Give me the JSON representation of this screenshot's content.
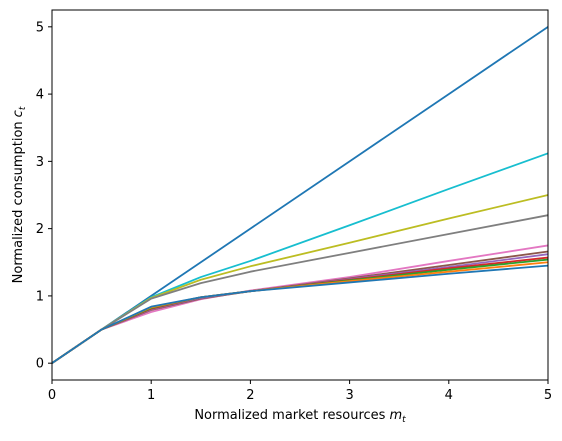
{
  "chart_data": {
    "type": "line",
    "xlabel": "Normalized market resources",
    "xlabel_symbol": "m",
    "xlabel_subscript": "t",
    "ylabel": "Normalized consumption",
    "ylabel_symbol": "c",
    "ylabel_subscript": "t",
    "xlim": [
      0,
      5
    ],
    "ylim": [
      -0.25,
      5.25
    ],
    "xticks": [
      "0",
      "1",
      "2",
      "3",
      "4",
      "5"
    ],
    "yticks": [
      "0",
      "1",
      "2",
      "3",
      "4",
      "5"
    ],
    "grid": false,
    "legend": "none",
    "series": [
      {
        "color": "#1f77b4",
        "x": [
          0,
          1,
          2,
          3,
          4,
          5
        ],
        "y": [
          0,
          1.0,
          2.0,
          3.0,
          4.0,
          5.0
        ]
      },
      {
        "color": "#17becf",
        "x": [
          0,
          0.5,
          1,
          1.5,
          2,
          3,
          4,
          5
        ],
        "y": [
          0,
          0.5,
          0.98,
          1.28,
          1.52,
          2.05,
          2.59,
          3.12
        ]
      },
      {
        "color": "#bcbd22",
        "x": [
          0,
          0.5,
          1,
          1.5,
          2,
          3,
          4,
          5
        ],
        "y": [
          0,
          0.5,
          0.97,
          1.24,
          1.44,
          1.79,
          2.15,
          2.5
        ]
      },
      {
        "color": "#7f7f7f",
        "x": [
          0,
          0.5,
          1,
          1.5,
          2,
          3,
          4,
          5
        ],
        "y": [
          0,
          0.5,
          0.96,
          1.19,
          1.36,
          1.64,
          1.92,
          2.2
        ]
      },
      {
        "color": "#e377c2",
        "x": [
          0,
          0.5,
          1,
          1.5,
          2,
          3,
          4,
          5
        ],
        "y": [
          0,
          0.5,
          0.76,
          0.95,
          1.08,
          1.28,
          1.52,
          1.75
        ]
      },
      {
        "color": "#8c564b",
        "x": [
          0,
          0.5,
          1,
          1.5,
          2,
          3,
          4,
          5
        ],
        "y": [
          0,
          0.5,
          0.79,
          0.96,
          1.07,
          1.26,
          1.46,
          1.66
        ]
      },
      {
        "color": "#9467bd",
        "x": [
          0,
          0.5,
          1,
          1.5,
          2,
          3,
          4,
          5
        ],
        "y": [
          0,
          0.5,
          0.8,
          0.97,
          1.07,
          1.25,
          1.43,
          1.62
        ]
      },
      {
        "color": "#d62728",
        "x": [
          0,
          0.5,
          1,
          1.5,
          2,
          3,
          4,
          5
        ],
        "y": [
          0,
          0.5,
          0.81,
          0.98,
          1.07,
          1.24,
          1.41,
          1.57
        ]
      },
      {
        "color": "#2ca02c",
        "x": [
          0,
          0.5,
          1,
          1.5,
          2,
          3,
          4,
          5
        ],
        "y": [
          0,
          0.5,
          0.82,
          0.98,
          1.07,
          1.23,
          1.39,
          1.54
        ]
      },
      {
        "color": "#ff7f0e",
        "x": [
          0,
          0.5,
          1,
          1.5,
          2,
          3,
          4,
          5
        ],
        "y": [
          0,
          0.5,
          0.83,
          0.98,
          1.07,
          1.22,
          1.36,
          1.5
        ]
      },
      {
        "color": "#1f77b4",
        "x": [
          0,
          0.5,
          1,
          1.5,
          2,
          3,
          4,
          5
        ],
        "y": [
          0,
          0.5,
          0.84,
          0.98,
          1.07,
          1.2,
          1.33,
          1.45
        ]
      }
    ]
  }
}
